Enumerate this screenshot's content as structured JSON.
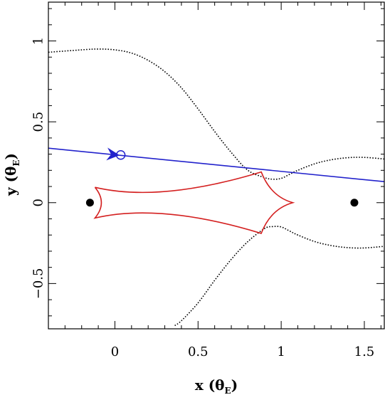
{
  "chart_data": {
    "type": "scatter",
    "title": "",
    "xlabel": {
      "main": "x (θ",
      "sub": "E",
      "close": ")"
    },
    "ylabel": {
      "main": "y (θ",
      "sub": "E",
      "close": ")"
    },
    "xlim": [
      -0.4,
      1.62
    ],
    "ylim": [
      -0.78,
      1.24
    ],
    "xticks": [
      {
        "value": 0,
        "label": "0"
      },
      {
        "value": 0.5,
        "label": "0.5"
      },
      {
        "value": 1,
        "label": "1"
      },
      {
        "value": 1.5,
        "label": "1.5"
      }
    ],
    "yticks": [
      {
        "value": -0.5,
        "label": "−0.5"
      },
      {
        "value": 0,
        "label": "0"
      },
      {
        "value": 0.5,
        "label": "0.5"
      },
      {
        "value": 1,
        "label": "1"
      }
    ],
    "minor_step": 0.1,
    "grid": false,
    "lenses": [
      {
        "x": -0.15,
        "y": 0.0
      },
      {
        "x": 1.44,
        "y": 0.0
      }
    ],
    "critical_curve": {
      "color": "#000000",
      "style": "dotted",
      "upper": [
        [
          -0.4,
          0.93
        ],
        [
          -0.2,
          0.945
        ],
        [
          -0.1,
          0.95
        ],
        [
          0.0,
          0.945
        ],
        [
          0.1,
          0.925
        ],
        [
          0.2,
          0.88
        ],
        [
          0.3,
          0.81
        ],
        [
          0.4,
          0.71
        ],
        [
          0.5,
          0.58
        ],
        [
          0.6,
          0.44
        ],
        [
          0.7,
          0.31
        ],
        [
          0.8,
          0.2
        ],
        [
          0.9,
          0.155
        ],
        [
          0.95,
          0.145
        ],
        [
          1.0,
          0.15
        ],
        [
          1.05,
          0.175
        ],
        [
          1.1,
          0.2
        ],
        [
          1.2,
          0.24
        ],
        [
          1.3,
          0.265
        ],
        [
          1.4,
          0.278
        ],
        [
          1.5,
          0.28
        ],
        [
          1.62,
          0.27
        ]
      ],
      "lower": [
        [
          0.36,
          -0.76
        ],
        [
          0.4,
          -0.73
        ],
        [
          0.5,
          -0.62
        ],
        [
          0.6,
          -0.48
        ],
        [
          0.7,
          -0.35
        ],
        [
          0.8,
          -0.24
        ],
        [
          0.9,
          -0.16
        ],
        [
          0.95,
          -0.148
        ],
        [
          1.0,
          -0.15
        ],
        [
          1.05,
          -0.175
        ],
        [
          1.1,
          -0.2
        ],
        [
          1.2,
          -0.24
        ],
        [
          1.3,
          -0.265
        ],
        [
          1.4,
          -0.278
        ],
        [
          1.5,
          -0.28
        ],
        [
          1.62,
          -0.27
        ]
      ]
    },
    "caustic": {
      "color": "#d42020",
      "cusps": [
        [
          -0.12,
          0.095
        ],
        [
          -0.12,
          -0.095
        ],
        [
          0.88,
          0.19
        ],
        [
          0.88,
          -0.19
        ],
        [
          1.07,
          0.0
        ]
      ]
    },
    "source_trajectory": {
      "color": "#2222cc",
      "points": [
        [
          -0.4,
          0.337
        ],
        [
          1.62,
          0.13
        ]
      ],
      "source_position": {
        "x": 0.035,
        "y": 0.295
      },
      "arrow_at": {
        "x": -0.01,
        "y": 0.297
      }
    }
  }
}
